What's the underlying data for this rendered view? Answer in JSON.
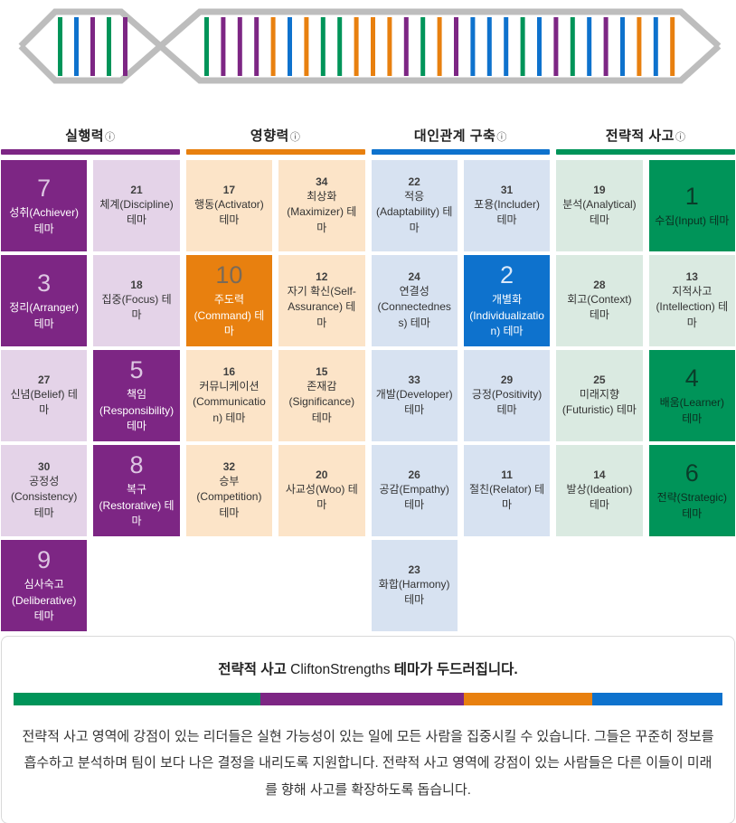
{
  "icons": {
    "info": "ⓘ",
    "dna": "dna-helix"
  },
  "colors": {
    "strand_gray": "#bdbdbd",
    "light_card_number": "#3f3f3f",
    "light_card_label": "#333333"
  },
  "domains": [
    {
      "label": "실행력",
      "color": "#7d2684",
      "light": "#e4d3e8",
      "solid_num_color": "#ddc6e2",
      "solid_label_color": "#ffffff",
      "themes": [
        {
          "rank": 7,
          "label": "성취(Achiever) 테마"
        },
        {
          "rank": 21,
          "label": "체계(Discipline) 테마"
        },
        {
          "rank": 3,
          "label": "정리(Arranger) 테마"
        },
        {
          "rank": 18,
          "label": "집중(Focus) 테마"
        },
        {
          "rank": 27,
          "label": "신념(Belief) 테마"
        },
        {
          "rank": 5,
          "label": "책임(Responsibility) 테마"
        },
        {
          "rank": 30,
          "label": "공정성(Consistency) 테마"
        },
        {
          "rank": 8,
          "label": "복구(Restorative) 테마"
        },
        {
          "rank": 9,
          "label": "심사숙고(Deliberative) 테마"
        }
      ]
    },
    {
      "label": "영향력",
      "color": "#e8800f",
      "light": "#fce4c8",
      "solid_num_color": "#7a6a58",
      "solid_label_color": "#ffffff",
      "themes": [
        {
          "rank": 17,
          "label": "행동(Activator) 테마"
        },
        {
          "rank": 34,
          "label": "최상화(Maximizer) 테마"
        },
        {
          "rank": 10,
          "label": "주도력(Command) 테마"
        },
        {
          "rank": 12,
          "label": "자기 확신(Self-Assurance) 테마"
        },
        {
          "rank": 16,
          "label": "커뮤니케이션 (Communication) 테마"
        },
        {
          "rank": 15,
          "label": "존재감(Significance) 테마"
        },
        {
          "rank": 32,
          "label": "승부(Competition) 테마"
        },
        {
          "rank": 20,
          "label": "사교성(Woo) 테마"
        }
      ]
    },
    {
      "label": "대인관계 구축",
      "color": "#0e72cd",
      "light": "#d7e2f1",
      "solid_num_color": "#dbe9fa",
      "solid_label_color": "#ffffff",
      "themes": [
        {
          "rank": 22,
          "label": "적응(Adaptability) 테마"
        },
        {
          "rank": 31,
          "label": "포용(Includer) 테마"
        },
        {
          "rank": 24,
          "label": "연결성 (Connectedness) 테마"
        },
        {
          "rank": 2,
          "label": "개별화 (Individualization) 테마"
        },
        {
          "rank": 33,
          "label": "개발(Developer) 테마"
        },
        {
          "rank": 29,
          "label": "긍정(Positivity) 테마"
        },
        {
          "rank": 26,
          "label": "공감(Empathy) 테마"
        },
        {
          "rank": 11,
          "label": "절친(Relator) 테마"
        },
        {
          "rank": 23,
          "label": "화합(Harmony) 테마"
        }
      ]
    },
    {
      "label": "전략적 사고",
      "color": "#009459",
      "light": "#daeae1",
      "solid_num_color": "#0a3d2a",
      "solid_label_color": "#0b2e20",
      "themes": [
        {
          "rank": 19,
          "label": "분석(Analytical) 테마"
        },
        {
          "rank": 1,
          "label": "수집(Input) 테마"
        },
        {
          "rank": 28,
          "label": "회고(Context) 테마"
        },
        {
          "rank": 13,
          "label": "지적사고(Intellection) 테마"
        },
        {
          "rank": 25,
          "label": "미래지향(Futuristic) 테마"
        },
        {
          "rank": 4,
          "label": "배움(Learner) 테마"
        },
        {
          "rank": 14,
          "label": "발상(Ideation) 테마"
        },
        {
          "rank": 6,
          "label": "전략(Strategic) 테마"
        }
      ]
    }
  ],
  "summary": {
    "title_domain": "전략적 사고",
    "title_brand": "CliftonStrengths",
    "title_rest": "테마가 두드러집니다.",
    "bar_segments": [
      {
        "domain": "전략적 사고",
        "color": "#009459",
        "percent": 34.8
      },
      {
        "domain": "실행력",
        "color": "#7d2684",
        "percent": 28.7
      },
      {
        "domain": "영향력",
        "color": "#e8800f",
        "percent": 18.1
      },
      {
        "domain": "대인관계 구축",
        "color": "#0e72cd",
        "percent": 18.4
      }
    ],
    "paragraph": "전략적 사고 영역에 강점이 있는 리더들은 실현 가능성이 있는 일에 모든 사람을 집중시킬 수 있습니다. 그들은 꾸준히 정보를 흡수하고 분석하며 팀이 보다 나은 결정을 내리도록 지원합니다. 전략적 사고 영역에 강점이 있는 사람들은 다른 이들이 미래를 향해 사고를 확장하도록 돕습니다."
  }
}
